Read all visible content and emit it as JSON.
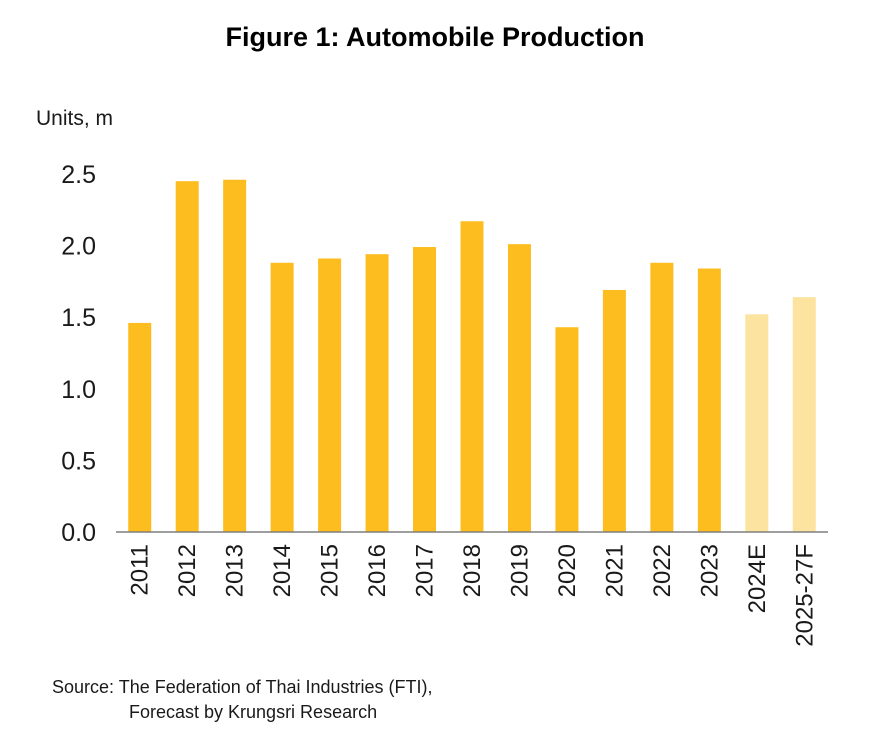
{
  "chart_data": {
    "type": "bar",
    "title": "Figure 1: Automobile Production",
    "ylabel": "Units, m",
    "xlabel": "",
    "ylim": [
      0,
      2.5
    ],
    "yticks": [
      "0.0",
      "0.5",
      "1.0",
      "1.5",
      "2.0",
      "2.5"
    ],
    "categories": [
      "2011",
      "2012",
      "2013",
      "2014",
      "2015",
      "2016",
      "2017",
      "2018",
      "2019",
      "2020",
      "2021",
      "2022",
      "2023",
      "2024E",
      "2025-27F"
    ],
    "values": [
      1.46,
      2.45,
      2.46,
      1.88,
      1.91,
      1.94,
      1.99,
      2.17,
      2.01,
      1.43,
      1.69,
      1.88,
      1.84,
      1.52,
      1.64
    ],
    "forecast": [
      false,
      false,
      false,
      false,
      false,
      false,
      false,
      false,
      false,
      false,
      false,
      false,
      false,
      true,
      true
    ],
    "colors": {
      "actual": "#FDBD1F",
      "forecast": "#FDE3A0",
      "axis": "#7f7f7f"
    },
    "grid": false,
    "legend": "none"
  },
  "source": {
    "line1": "Source: The Federation of Thai Industries (FTI),",
    "line2": "Forecast by Krungsri Research"
  }
}
